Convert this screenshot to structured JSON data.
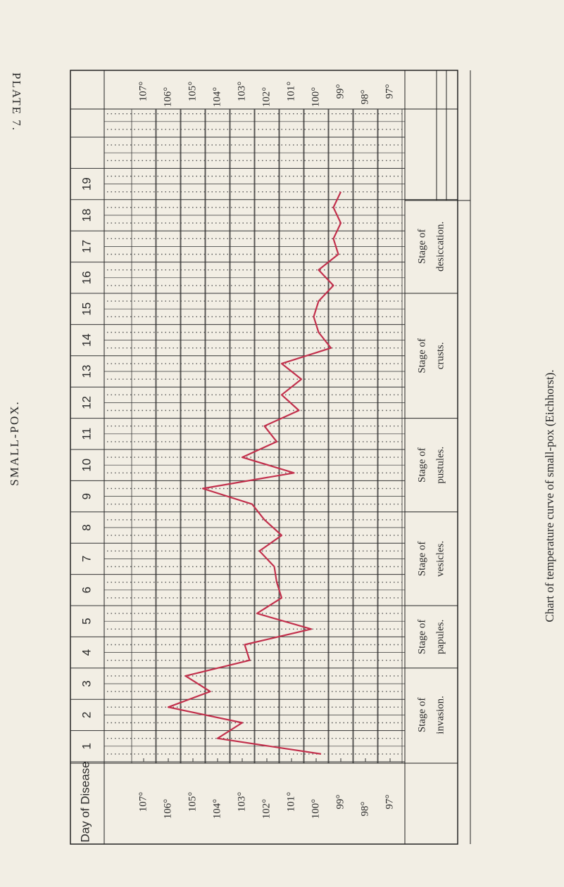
{
  "plate": "PLATE 7.",
  "heading": "SMALL-POX.",
  "caption": "Chart of temperature curve of small-pox (Eichhorst).",
  "chart_data": {
    "type": "line",
    "day_axis_label": "Day of Disease",
    "categories": [
      "1",
      null,
      "2",
      null,
      "3",
      null,
      "4",
      null,
      "5",
      null,
      "6",
      null,
      "7",
      null,
      "8",
      null,
      "9",
      null,
      "10",
      null,
      "11",
      null,
      "12",
      null,
      "13",
      null,
      "14",
      null,
      "15",
      null,
      "16",
      null,
      "17",
      null,
      "18",
      null,
      "19",
      null
    ],
    "values": [
      99.8,
      104,
      103,
      106,
      104.3,
      105.3,
      102.7,
      102.9,
      100.2,
      102.4,
      101.4,
      101.6,
      101.7,
      102.3,
      101.4,
      102.1,
      102.6,
      104.6,
      100.9,
      103,
      101.6,
      102.1,
      100.7,
      101.4,
      100.6,
      101.4,
      99.4,
      99.9,
      100.1,
      99.9,
      99.3,
      99.9,
      99.1,
      99.3,
      99,
      99.3,
      99,
      null
    ],
    "color": "#c2304c",
    "ylim": [
      108.6,
      96.4
    ],
    "yticks": [
      {
        "value": 107,
        "label": "107°"
      },
      {
        "value": 106,
        "label": "106°"
      },
      {
        "value": 105,
        "label": "105°"
      },
      {
        "value": 104,
        "label": "104°"
      },
      {
        "value": 103,
        "label": "103°"
      },
      {
        "value": 102,
        "label": "102°"
      },
      {
        "value": 101,
        "label": "101°"
      },
      {
        "value": 100,
        "label": "100°"
      },
      {
        "value": 99,
        "label": "99°"
      },
      {
        "value": 98,
        "label": "98°"
      },
      {
        "value": 97,
        "label": "97°"
      }
    ],
    "stages": [
      [
        "Stage of",
        "invasion."
      ],
      [
        "Stage of",
        "papules."
      ],
      [
        "Stage of",
        "vesicles."
      ],
      [
        "Stage of",
        "pustules."
      ],
      [
        "Stage of",
        "crusts."
      ],
      [
        "Stage of",
        "desiccation."
      ]
    ]
  }
}
